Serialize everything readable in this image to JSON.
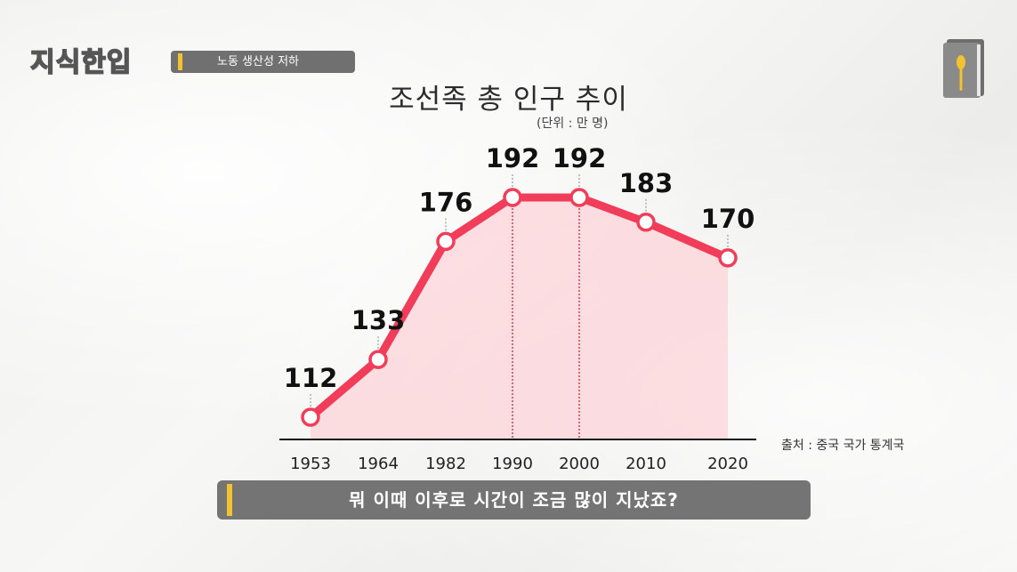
{
  "channel": {
    "logo_text": "지식한입",
    "topic": "노동 생산성 저하"
  },
  "colors": {
    "line": "#f13d59",
    "fill": "#ffc9cf",
    "marker_fill": "#ffffff",
    "accent_bar": "#f2c230",
    "caption_bg": "#747474"
  },
  "icons": {
    "corner": "book-spoon-icon"
  },
  "chart_data": {
    "type": "line",
    "title": "조선족 총 인구 추이",
    "unit_note": "(단위 : 만 명)",
    "source": "출처 : 중국 국가 통계국",
    "x": [
      "1953",
      "1964",
      "1982",
      "1990",
      "2000",
      "2010",
      "2020"
    ],
    "series": [
      {
        "values": [
          112,
          133,
          176,
          192,
          192,
          183,
          170
        ]
      }
    ],
    "highlight_dashed": [
      "1990",
      "2000"
    ],
    "grid": false
  },
  "caption": {
    "text": "뭐 이때 이후로 시간이 조금 많이 지났죠?"
  }
}
